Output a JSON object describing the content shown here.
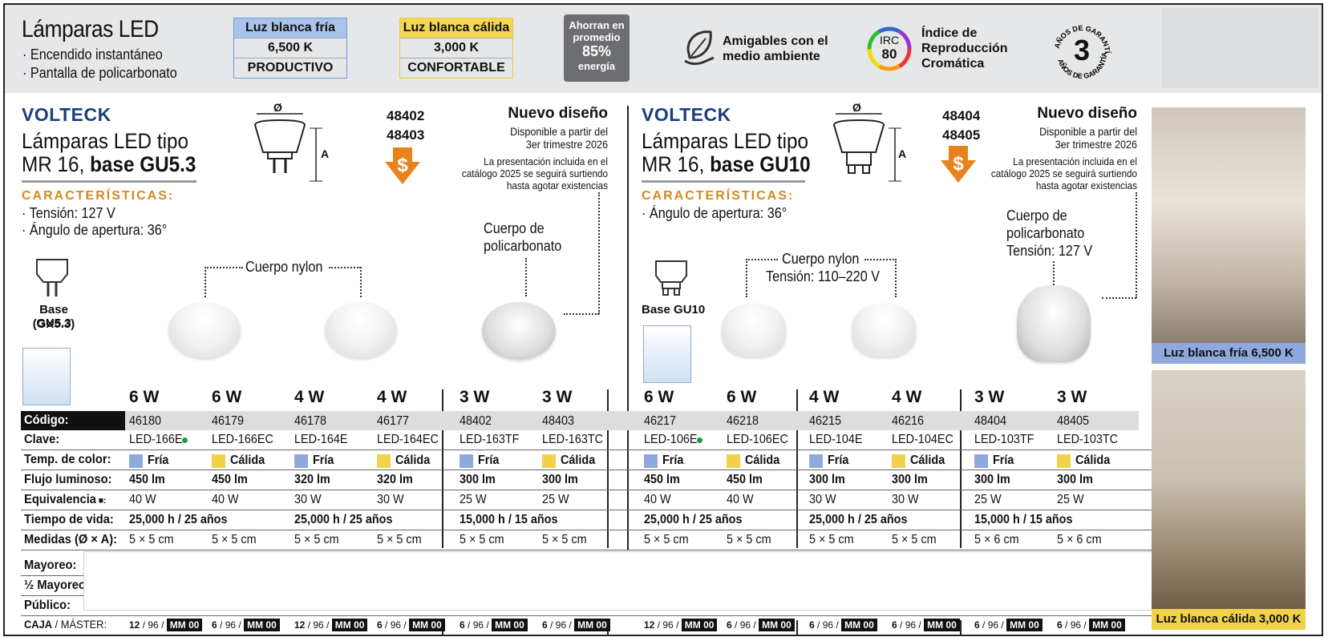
{
  "header": {
    "title": "Lámparas LED",
    "bullets": [
      "· Encendido instantáneo",
      "· Pantalla de policarbonato"
    ],
    "cold": {
      "name": "Luz blanca fría",
      "temp": "6,500 K",
      "mood": "PRODUCTIVO"
    },
    "warm": {
      "name": "Luz blanca cálida",
      "temp": "3,000 K",
      "mood": "CONFORTABLE"
    },
    "savings": {
      "line1": "Ahorran en",
      "line2": "promedio",
      "value": "85%",
      "unit": "energía"
    },
    "eco": {
      "line1": "Amigables con el",
      "line2": "medio ambiente"
    },
    "irc": {
      "badge_top": "IRC",
      "badge_value": "80",
      "line1": "Índice de",
      "line2": "Reproducción",
      "line3": "Cromática"
    },
    "warranty": {
      "value": "3",
      "arc_text": "AÑOS DE GARANTÍA"
    }
  },
  "left": {
    "brand": "VOLTECK",
    "title1": "Lámparas LED tipo",
    "title2a": "MR 16, ",
    "title2b": "base GU5.3",
    "carac": "CARACTERÍSTICAS:",
    "specs": [
      "· Tensión: 127 V",
      "· Ángulo de apertura: 36°"
    ],
    "dim_phi": "Ø",
    "dim_a": "A",
    "codes": [
      "48402",
      "48403"
    ],
    "nuevo": "Nuevo diseño",
    "avail1": "Disponible a partir del",
    "avail2": "3er trimestre 2026",
    "pres1": "La presentación incluida en el",
    "pres2": "catálogo 2025 se seguirá surtiendo",
    "pres3": "hasta agotar existencias",
    "callout_nylon": "Cuerpo nylon",
    "callout_poly1": "Cuerpo de",
    "callout_poly2": "policarbonato",
    "base1": "Base GU5.3",
    "base2": "(GX5.3)"
  },
  "right": {
    "brand": "VOLTECK",
    "title1": "Lámparas LED tipo",
    "title2a": "MR 16, ",
    "title2b": "base GU10",
    "carac": "CARACTERÍSTICAS:",
    "specs": [
      "· Ángulo de apertura: 36°"
    ],
    "dim_phi": "Ø",
    "dim_a": "A",
    "codes": [
      "48404",
      "48405"
    ],
    "nuevo": "Nuevo diseño",
    "avail1": "Disponible a partir del",
    "avail2": "3er trimestre 2026",
    "pres1": "La presentación incluida en el",
    "pres2": "catálogo 2025 se seguirá surtiendo",
    "pres3": "hasta agotar existencias",
    "callout_nylon1": "Cuerpo nylon",
    "callout_nylon2": "Tensión: 110–220 V",
    "callout_poly1": "Cuerpo de",
    "callout_poly2": "policarbonato",
    "callout_poly3": "Tensión: 127 V",
    "base1": "Base GU10"
  },
  "table": {
    "labels": {
      "codigo": "Código:",
      "clave": "Clave:",
      "temp": "Temp. de color:",
      "flujo": "Flujo luminoso:",
      "equiv": "Equivalencia",
      "vida": "Tiempo de vida:",
      "medidas": "Medidas (Ø × A):",
      "mayoreo": "Mayoreo:",
      "medio": "½ Mayoreo:",
      "publico": "Público:",
      "caja": "CAJA",
      "master": " / MÁSTER:"
    },
    "products": [
      {
        "watt": "6 W",
        "code": "46180",
        "clave": "LED-166E",
        "dot": true,
        "temp": "Fría",
        "cold": true,
        "flujo": "450 lm",
        "equiv": "40 W",
        "medidas": "5 × 5 cm",
        "caja": "12",
        "master": "96"
      },
      {
        "watt": "6 W",
        "code": "46179",
        "clave": "LED-166EC",
        "temp": "Cálida",
        "cold": false,
        "flujo": "450 lm",
        "equiv": "40 W",
        "medidas": "5 × 5 cm",
        "caja": "6",
        "master": "96"
      },
      {
        "watt": "4 W",
        "code": "46178",
        "clave": "LED-164E",
        "temp": "Fría",
        "cold": true,
        "flujo": "320 lm",
        "equiv": "30 W",
        "medidas": "5 × 5 cm",
        "caja": "12",
        "master": "96"
      },
      {
        "watt": "4 W",
        "code": "46177",
        "clave": "LED-164EC",
        "temp": "Cálida",
        "cold": false,
        "flujo": "320 lm",
        "equiv": "30 W",
        "medidas": "5 × 5 cm",
        "caja": "6",
        "master": "96"
      },
      {
        "watt": "3 W",
        "code": "48402",
        "clave": "LED-163TF",
        "temp": "Fría",
        "cold": true,
        "flujo": "300 lm",
        "equiv": "25 W",
        "medidas": "5 × 5 cm",
        "caja": "6",
        "master": "96"
      },
      {
        "watt": "3 W",
        "code": "48403",
        "clave": "LED-163TC",
        "temp": "Cálida",
        "cold": false,
        "flujo": "300 lm",
        "equiv": "25 W",
        "medidas": "5 × 5 cm",
        "caja": "6",
        "master": "96"
      },
      {
        "watt": "6 W",
        "code": "46217",
        "clave": "LED-106E",
        "dot": true,
        "temp": "Fría",
        "cold": true,
        "flujo": "450 lm",
        "equiv": "40 W",
        "medidas": "5 × 5 cm",
        "caja": "12",
        "master": "96"
      },
      {
        "watt": "6 W",
        "code": "46218",
        "clave": "LED-106EC",
        "temp": "Cálida",
        "cold": false,
        "flujo": "450 lm",
        "equiv": "40 W",
        "medidas": "5 × 5 cm",
        "caja": "6",
        "master": "96"
      },
      {
        "watt": "4 W",
        "code": "46215",
        "clave": "LED-104E",
        "temp": "Fría",
        "cold": true,
        "flujo": "300 lm",
        "equiv": "30 W",
        "medidas": "5 × 5 cm",
        "caja": "6",
        "master": "96"
      },
      {
        "watt": "4 W",
        "code": "46216",
        "clave": "LED-104EC",
        "temp": "Cálida",
        "cold": false,
        "flujo": "300 lm",
        "equiv": "30 W",
        "medidas": "5 × 5 cm",
        "caja": "6",
        "master": "96"
      },
      {
        "watt": "3 W",
        "code": "48404",
        "clave": "LED-103TF",
        "temp": "Fría",
        "cold": true,
        "flujo": "300 lm",
        "equiv": "25 W",
        "medidas": "5 × 6 cm",
        "caja": "6",
        "master": "96"
      },
      {
        "watt": "3 W",
        "code": "48405",
        "clave": "LED-103TC",
        "temp": "Cálida",
        "cold": false,
        "flujo": "300 lm",
        "equiv": "25 W",
        "medidas": "5 × 6 cm",
        "caja": "6",
        "master": "96"
      }
    ],
    "vida": [
      "25,000 h / 25 años",
      "25,000 h / 25 años",
      "15,000 h / 15 años",
      "25,000 h / 25 años",
      "25,000 h / 25 años",
      "15,000 h / 15 años"
    ],
    "price_box": "MM 00",
    "colors": {
      "cold": "#8fa9dd",
      "warm": "#f2d24a",
      "green_dot": "#1a9a4a",
      "accent_orange": "#e8821e",
      "brand_blue": "#1c3f7a"
    }
  },
  "photos": {
    "cold_caption": "Luz blanca fría 6,500 K",
    "warm_caption": "Luz blanca cálida 3,000 K"
  }
}
